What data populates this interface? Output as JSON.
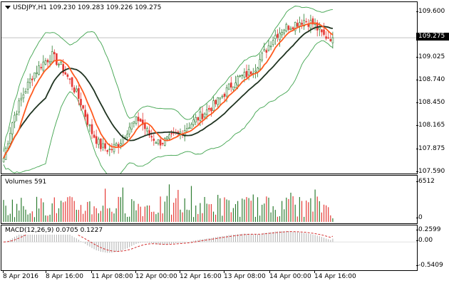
{
  "header": {
    "symbol": "USDJPY,H1",
    "ohlc": "109.230 109.283 109.226 109.275"
  },
  "price_axis": {
    "ticks": [
      "109.600",
      "109.275",
      "109.025",
      "108.740",
      "108.450",
      "108.165",
      "107.875",
      "107.590"
    ],
    "current_price": "109.275"
  },
  "volume_pane": {
    "label": "Volumes 591",
    "ticks": [
      "6512",
      "0"
    ]
  },
  "macd_pane": {
    "label": "MACD(12,26,9) 0.0705 0.1227",
    "ticks": [
      "0.2599",
      "0.00",
      "-0.5409"
    ]
  },
  "time_axis": {
    "labels": [
      "8 Apr 2016",
      "8 Apr 16:00",
      "11 Apr 08:00",
      "12 Apr 00:00",
      "12 Apr 16:00",
      "13 Apr 08:00",
      "14 Apr 00:00",
      "14 Apr 16:00"
    ]
  },
  "colors": {
    "bull_candle": "#2e7d32",
    "bear_candle": "#e53935",
    "ma_fast": "#ff5a1f",
    "ma_slow": "#1f3320",
    "bollinger": "#3fa34d",
    "macd_signal": "#d32f2f",
    "macd_hist": "#b0b0b0",
    "current_price_line": "#9e9e9e"
  },
  "chart_data": {
    "type": "candlestick",
    "instrument": "USDJPY",
    "timeframe": "H1",
    "close_path_approx": [
      107.75,
      108.25,
      108.55,
      108.8,
      108.95,
      109.05,
      108.9,
      108.7,
      108.45,
      108.1,
      107.9,
      107.85,
      107.95,
      108.15,
      108.25,
      108.05,
      107.95,
      107.98,
      108.05,
      108.15,
      108.25,
      108.35,
      108.45,
      108.6,
      108.75,
      108.8,
      108.9,
      109.1,
      109.3,
      109.4,
      109.45,
      109.5,
      109.45,
      109.3,
      109.28
    ],
    "price_range": [
      107.59,
      109.6
    ],
    "last_price": 109.275,
    "volume_max": 6512,
    "volume_last": 591,
    "macd": {
      "params": "12,26,9",
      "main": 0.0705,
      "signal": 0.1227,
      "range": [
        -0.5409,
        0.2599
      ]
    }
  }
}
